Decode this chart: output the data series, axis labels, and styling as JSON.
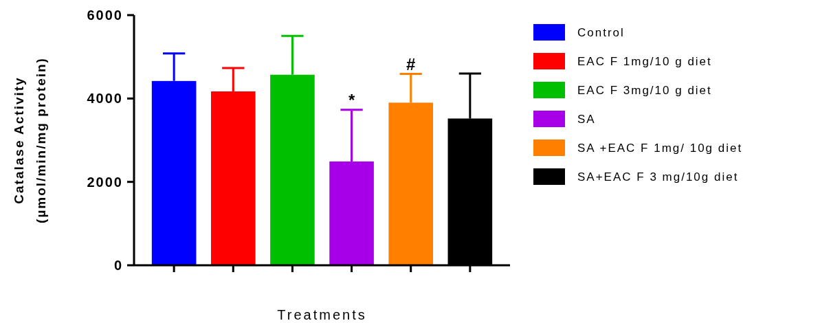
{
  "chart_data": {
    "type": "bar",
    "xlabel": "Treatments",
    "ylabel": "Catalase Activity\n(µmol/min/mg protein)",
    "categories": [
      null,
      null,
      null,
      null,
      null,
      null
    ],
    "series": [
      {
        "name": "Control",
        "color": "#0000ff",
        "values": [
          4420,
          null,
          null,
          null,
          null,
          null
        ],
        "errors": [
          [
            4420,
            5080
          ],
          null,
          null,
          null,
          null,
          null
        ]
      },
      {
        "name": "EAC F 1mg/10 g diet",
        "color": "#ff0000",
        "values": [
          null,
          4170,
          null,
          null,
          null,
          null
        ],
        "errors": [
          null,
          [
            4170,
            4730
          ],
          null,
          null,
          null,
          null
        ]
      },
      {
        "name": "EAC F 3mg/10 g diet",
        "color": "#00bf00",
        "values": [
          null,
          null,
          4570,
          null,
          null,
          null
        ],
        "errors": [
          null,
          null,
          [
            4570,
            5500
          ],
          null,
          null,
          null
        ]
      },
      {
        "name": "SA",
        "color": "#a700e8",
        "values": [
          null,
          null,
          null,
          2490,
          null,
          null
        ],
        "errors": [
          null,
          null,
          null,
          [
            2490,
            3730
          ],
          null,
          null
        ]
      },
      {
        "name": "SA +EAC F 1mg/ 10g diet",
        "color": "#ff8000",
        "values": [
          null,
          null,
          null,
          null,
          3900,
          null
        ],
        "errors": [
          null,
          null,
          null,
          null,
          [
            3900,
            4590
          ],
          null
        ]
      },
      {
        "name": "SA+EAC F 3 mg/10g diet",
        "color": "#000000",
        "values": [
          null,
          null,
          null,
          null,
          null,
          3520
        ],
        "errors": [
          null,
          null,
          null,
          null,
          null,
          [
            3520,
            4600
          ]
        ]
      }
    ],
    "annotations": [
      {
        "text": "*",
        "y": 3730
      },
      {
        "text": "#",
        "y": 4590
      }
    ],
    "ylim": [
      0,
      6000
    ],
    "yticks": [
      0,
      2000,
      4000,
      6000
    ],
    "grid": false,
    "legend": "right"
  }
}
